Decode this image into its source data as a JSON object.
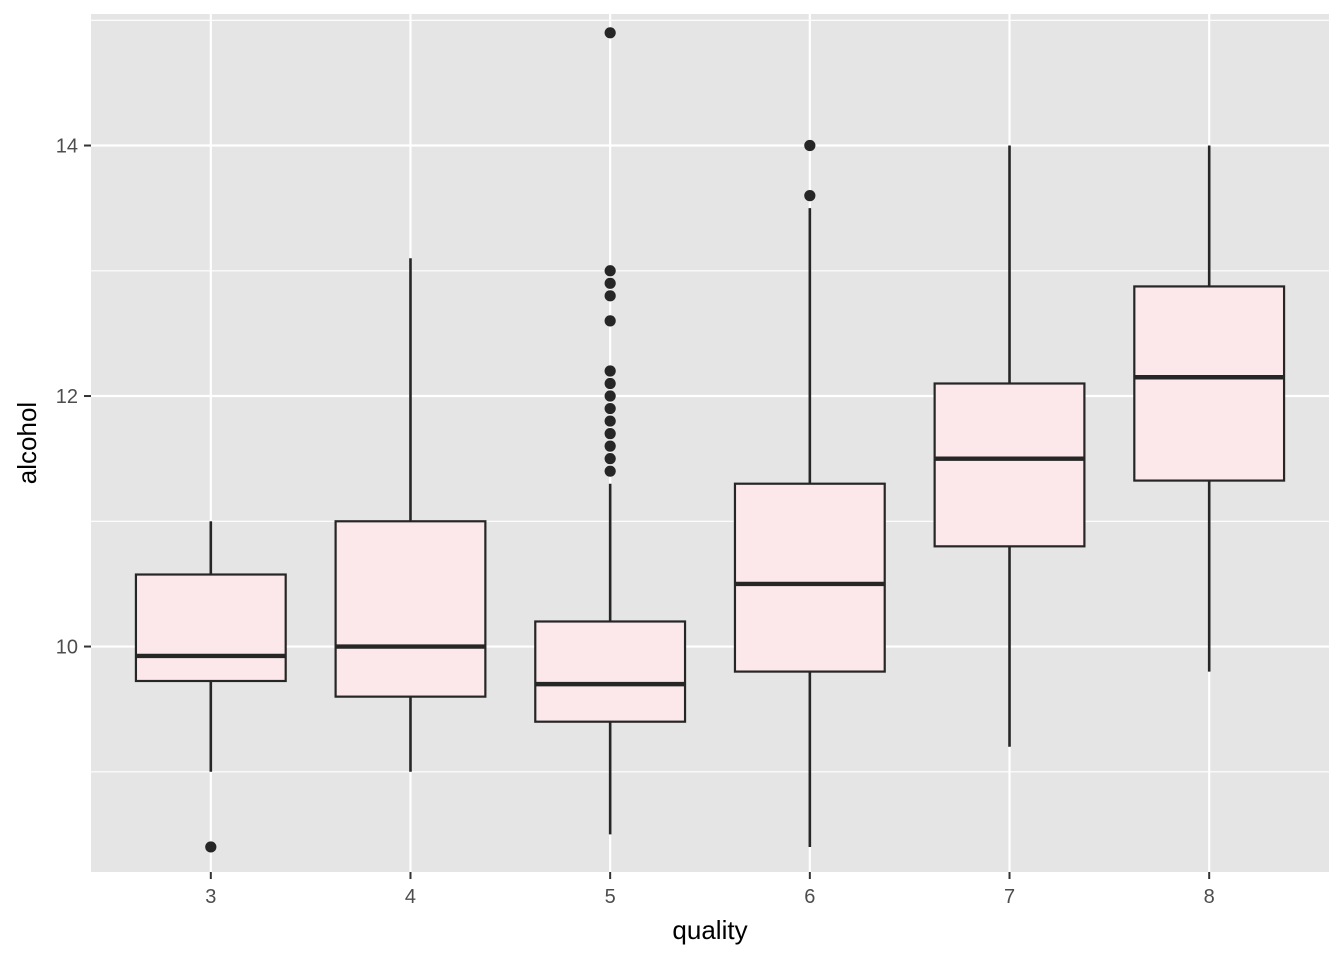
{
  "chart_data": {
    "type": "box",
    "xlabel": "quality",
    "ylabel": "alcohol",
    "categories": [
      "3",
      "4",
      "5",
      "6",
      "7",
      "8"
    ],
    "ylim": [
      8.2,
      15.05
    ],
    "y_major_ticks": [
      10,
      12,
      14
    ],
    "y_minor_ticks": [
      9,
      11,
      13,
      15
    ],
    "grid": true,
    "box_fill": "#fce8ea",
    "box_stroke": "#262626",
    "panel_background": "#e5e5e5",
    "boxes": [
      {
        "category": "3",
        "whisker_low": 9.0,
        "q1": 9.725,
        "median": 9.925,
        "q3": 10.575,
        "whisker_high": 11.0,
        "outliers": [
          8.4
        ]
      },
      {
        "category": "4",
        "whisker_low": 9.0,
        "q1": 9.6,
        "median": 10.0,
        "q3": 11.0,
        "whisker_high": 13.1,
        "outliers": []
      },
      {
        "category": "5",
        "whisker_low": 8.5,
        "q1": 9.4,
        "median": 9.7,
        "q3": 10.2,
        "whisker_high": 11.3,
        "outliers": [
          11.4,
          11.5,
          11.6,
          11.7,
          11.8,
          11.9,
          12.0,
          12.1,
          12.2,
          12.6,
          12.8,
          12.9,
          13.0,
          14.9
        ]
      },
      {
        "category": "6",
        "whisker_low": 8.4,
        "q1": 9.8,
        "median": 10.5,
        "q3": 11.3,
        "whisker_high": 13.5,
        "outliers": [
          13.6,
          14.0
        ]
      },
      {
        "category": "7",
        "whisker_low": 9.2,
        "q1": 10.8,
        "median": 11.5,
        "q3": 12.1,
        "whisker_high": 14.0,
        "outliers": []
      },
      {
        "category": "8",
        "whisker_low": 9.8,
        "q1": 11.325,
        "median": 12.15,
        "q3": 12.875,
        "whisker_high": 14.0,
        "outliers": []
      }
    ]
  }
}
